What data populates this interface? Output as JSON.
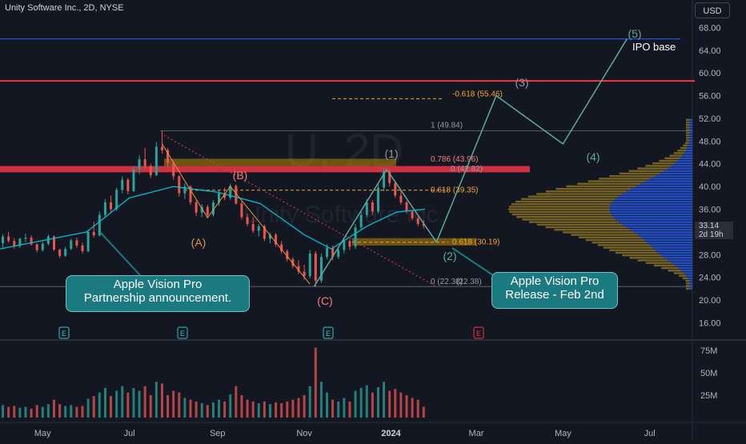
{
  "header": {
    "symbol_title": "Unity Software Inc., 2D, NYSE",
    "currency": "USD",
    "watermark_ticker": "U, 2D",
    "watermark_name": "Unity Software Inc."
  },
  "price_axis": {
    "ticks": [
      "68.00",
      "64.00",
      "60.00",
      "56.00",
      "52.00",
      "48.00",
      "44.00",
      "40.00",
      "36.00",
      "32.00",
      "28.00",
      "24.00",
      "20.00",
      "16.00"
    ],
    "current_price": "33.14",
    "countdown": "2d 19h"
  },
  "volume_axis": {
    "ticks": [
      "75M",
      "50M",
      "25M"
    ]
  },
  "time_axis": {
    "ticks": [
      "May",
      "Jul",
      "Sep",
      "Nov",
      "2024",
      "Mar",
      "May",
      "Jul"
    ]
  },
  "annotations": {
    "callout_partnership": [
      "Apple Vision Pro",
      "Partnership announcement."
    ],
    "callout_release": [
      "Apple Vision Pro",
      "Release - Feb 2nd"
    ],
    "ipo_base": "IPO base",
    "wave_labels": {
      "A": "(A)",
      "B": "(B)",
      "C": "(C)",
      "w1": "(1)",
      "w2": "(2)",
      "w3": "(3)",
      "w4": "(4)",
      "w5": "(5)"
    },
    "fib_labels": {
      "f_neg618": "-0.618 (55.46)",
      "f_1": "1 (49.84)",
      "f_786": "0.786 (43.96)",
      "f_0a": "0 (42.82)",
      "f_618a": "0.618 (39.35)",
      "f_618b": "0.618 (30.19)",
      "f_0b": "0 (22.38)",
      "f_0c": "(22.38)"
    },
    "earnings_marker": "E"
  },
  "colors": {
    "background": "#131722",
    "up": "#26a69a",
    "down": "#ef5350",
    "ma": "#00bcd4",
    "resistance": "#f23645",
    "ipo_line": "#2962ff",
    "wave_path": "#5fa89a",
    "fib": "#f5a623",
    "profile_up": "#2962ff",
    "profile_down": "#c9a227",
    "callout": "#1a7a80"
  },
  "chart_data": {
    "type": "candlestick",
    "title": "Unity Software Inc., 2D, NYSE",
    "ylim": [
      16,
      70
    ],
    "x_range": [
      "2023-04-01",
      "2024-07-31"
    ],
    "horizontal_levels": [
      {
        "name": "IPO base",
        "value": 66.0
      },
      {
        "name": "resistance",
        "value": 58.6
      },
      {
        "name": "resistance zone",
        "value": [
          42.5,
          43.6
        ]
      }
    ],
    "moving_average": [
      {
        "date": "2023-04-01",
        "value": 29.0
      },
      {
        "date": "2023-06-01",
        "value": 32.0
      },
      {
        "date": "2023-07-01",
        "value": 38.0
      },
      {
        "date": "2023-08-01",
        "value": 40.0
      },
      {
        "date": "2023-09-01",
        "value": 39.0
      },
      {
        "date": "2023-10-01",
        "value": 37.0
      },
      {
        "date": "2023-11-01",
        "value": 31.5
      },
      {
        "date": "2023-11-20",
        "value": 29.0
      },
      {
        "date": "2023-12-15",
        "value": 33.0
      },
      {
        "date": "2024-01-05",
        "value": 35.5
      },
      {
        "date": "2024-01-25",
        "value": 36.0
      }
    ],
    "wave_path": [
      {
        "label": "(C)",
        "date": "2023-11-08",
        "value": 22.4
      },
      {
        "label": "(1)",
        "date": "2023-12-29",
        "value": 43.0
      },
      {
        "label": "(2)",
        "date": "2024-02-02",
        "value": 30.2
      },
      {
        "label": "(3)",
        "date": "2024-03-15",
        "value": 56.0
      },
      {
        "label": "(4)",
        "date": "2024-05-01",
        "value": 47.5
      },
      {
        "label": "(5)",
        "date": "2024-06-15",
        "value": 66.0
      }
    ],
    "fib_levels": [
      55.46,
      49.84,
      43.96,
      42.82,
      39.35,
      30.19,
      22.38
    ],
    "candles": [
      [
        "2023-04-03",
        30.0,
        31.6,
        29.2,
        31.2,
        14
      ],
      [
        "2023-04-07",
        31.2,
        32.0,
        30.1,
        30.4,
        12
      ],
      [
        "2023-04-11",
        30.4,
        30.9,
        29.0,
        29.5,
        13
      ],
      [
        "2023-04-15",
        29.5,
        31.0,
        29.2,
        30.8,
        11
      ],
      [
        "2023-04-19",
        30.8,
        31.7,
        30.2,
        31.0,
        12
      ],
      [
        "2023-04-23",
        31.0,
        31.4,
        29.6,
        29.8,
        10
      ],
      [
        "2023-04-27",
        29.8,
        30.0,
        28.4,
        28.8,
        14
      ],
      [
        "2023-05-01",
        28.8,
        30.3,
        28.5,
        29.9,
        12
      ],
      [
        "2023-05-05",
        29.9,
        31.5,
        29.6,
        31.2,
        15
      ],
      [
        "2023-05-09",
        31.2,
        31.4,
        28.6,
        28.9,
        20
      ],
      [
        "2023-05-13",
        28.9,
        29.0,
        27.4,
        27.8,
        15
      ],
      [
        "2023-05-17",
        27.8,
        29.4,
        27.6,
        29.0,
        13
      ],
      [
        "2023-05-21",
        29.0,
        30.8,
        28.8,
        30.5,
        14
      ],
      [
        "2023-05-25",
        30.5,
        31.0,
        29.2,
        29.6,
        12
      ],
      [
        "2023-05-29",
        29.6,
        30.1,
        28.2,
        28.6,
        13
      ],
      [
        "2023-06-02",
        28.6,
        32.4,
        28.4,
        32.0,
        21
      ],
      [
        "2023-06-06",
        32.0,
        33.8,
        31.0,
        31.4,
        24
      ],
      [
        "2023-06-10",
        31.4,
        35.6,
        31.2,
        35.0,
        28
      ],
      [
        "2023-06-14",
        35.0,
        37.8,
        34.6,
        37.2,
        33
      ],
      [
        "2023-06-18",
        37.2,
        38.4,
        35.4,
        36.0,
        24
      ],
      [
        "2023-06-22",
        36.0,
        39.8,
        35.7,
        39.4,
        30
      ],
      [
        "2023-06-26",
        39.4,
        41.8,
        38.8,
        41.2,
        35
      ],
      [
        "2023-06-30",
        41.2,
        41.5,
        38.6,
        39.2,
        28
      ],
      [
        "2023-07-04",
        39.2,
        43.6,
        39.0,
        43.0,
        33
      ],
      [
        "2023-07-08",
        43.0,
        45.5,
        42.2,
        44.8,
        30
      ],
      [
        "2023-07-12",
        44.8,
        46.8,
        43.2,
        43.6,
        35
      ],
      [
        "2023-07-16",
        43.6,
        44.0,
        41.5,
        42.0,
        25
      ],
      [
        "2023-07-20",
        42.0,
        47.8,
        41.8,
        47.0,
        40
      ],
      [
        "2023-07-24",
        47.0,
        49.8,
        45.8,
        46.4,
        38
      ],
      [
        "2023-07-28",
        46.4,
        46.8,
        43.5,
        44.2,
        25
      ],
      [
        "2023-08-01",
        44.2,
        44.5,
        41.2,
        41.8,
        30
      ],
      [
        "2023-08-05",
        41.8,
        42.0,
        38.2,
        38.8,
        28
      ],
      [
        "2023-08-09",
        38.8,
        40.6,
        37.8,
        40.0,
        22
      ],
      [
        "2023-08-13",
        40.0,
        40.2,
        36.8,
        37.2,
        20
      ],
      [
        "2023-08-17",
        37.2,
        37.6,
        34.8,
        35.4,
        18
      ],
      [
        "2023-08-21",
        35.4,
        36.9,
        34.6,
        36.4,
        16
      ],
      [
        "2023-08-25",
        36.4,
        36.8,
        34.4,
        35.0,
        14
      ],
      [
        "2023-08-29",
        35.0,
        37.6,
        34.7,
        37.2,
        17
      ],
      [
        "2023-09-02",
        37.2,
        39.4,
        36.6,
        38.8,
        20
      ],
      [
        "2023-09-06",
        38.8,
        39.8,
        37.6,
        38.0,
        18
      ],
      [
        "2023-09-10",
        38.0,
        40.5,
        37.6,
        40.1,
        26
      ],
      [
        "2023-09-14",
        40.1,
        40.4,
        36.8,
        37.0,
        35
      ],
      [
        "2023-09-18",
        37.0,
        37.4,
        34.2,
        34.6,
        25
      ],
      [
        "2023-09-22",
        34.6,
        35.2,
        33.0,
        33.4,
        20
      ],
      [
        "2023-09-26",
        33.4,
        34.6,
        31.8,
        32.2,
        18
      ],
      [
        "2023-09-30",
        32.2,
        33.4,
        31.2,
        33.0,
        16
      ],
      [
        "2023-10-04",
        33.0,
        33.3,
        30.4,
        30.8,
        18
      ],
      [
        "2023-10-08",
        30.8,
        31.9,
        30.0,
        31.5,
        15
      ],
      [
        "2023-10-12",
        31.5,
        31.8,
        29.4,
        29.8,
        17
      ],
      [
        "2023-10-16",
        29.8,
        30.4,
        28.2,
        28.6,
        16
      ],
      [
        "2023-10-20",
        28.6,
        28.9,
        26.8,
        27.2,
        18
      ],
      [
        "2023-10-24",
        27.2,
        27.5,
        25.6,
        26.0,
        20
      ],
      [
        "2023-10-28",
        26.0,
        27.0,
        24.6,
        25.0,
        22
      ],
      [
        "2023-11-01",
        25.0,
        26.2,
        23.6,
        24.2,
        25
      ],
      [
        "2023-11-05",
        24.2,
        28.8,
        23.8,
        28.2,
        35
      ],
      [
        "2023-11-09",
        28.2,
        28.6,
        22.4,
        23.4,
        78
      ],
      [
        "2023-11-13",
        23.4,
        28.2,
        23.0,
        27.6,
        40
      ],
      [
        "2023-11-17",
        27.6,
        29.8,
        27.2,
        29.2,
        28
      ],
      [
        "2023-11-21",
        29.2,
        29.6,
        27.0,
        27.6,
        20
      ],
      [
        "2023-11-25",
        27.6,
        29.2,
        27.2,
        28.8,
        18
      ],
      [
        "2023-11-29",
        28.8,
        30.9,
        28.2,
        30.4,
        22
      ],
      [
        "2023-12-03",
        30.4,
        30.6,
        28.8,
        29.4,
        18
      ],
      [
        "2023-12-07",
        29.4,
        33.4,
        29.0,
        32.8,
        30
      ],
      [
        "2023-12-11",
        32.8,
        35.6,
        32.4,
        35.0,
        33
      ],
      [
        "2023-12-15",
        35.0,
        37.8,
        34.6,
        37.2,
        36
      ],
      [
        "2023-12-19",
        37.2,
        37.6,
        35.0,
        35.6,
        28
      ],
      [
        "2023-12-23",
        35.6,
        40.4,
        35.2,
        39.8,
        34
      ],
      [
        "2023-12-27",
        39.8,
        43.2,
        39.2,
        42.6,
        40
      ],
      [
        "2023-12-31",
        42.6,
        43.0,
        40.0,
        40.6,
        30
      ],
      [
        "2024-01-04",
        40.6,
        41.0,
        38.0,
        38.4,
        32
      ],
      [
        "2024-01-08",
        38.4,
        39.4,
        36.8,
        37.2,
        28
      ],
      [
        "2024-01-12",
        37.2,
        37.5,
        35.2,
        35.6,
        25
      ],
      [
        "2024-01-16",
        35.6,
        35.8,
        34.0,
        34.4,
        22
      ],
      [
        "2024-01-20",
        34.4,
        34.8,
        33.0,
        33.4,
        20
      ],
      [
        "2024-01-24",
        33.4,
        34.0,
        32.6,
        33.1,
        12
      ]
    ]
  }
}
